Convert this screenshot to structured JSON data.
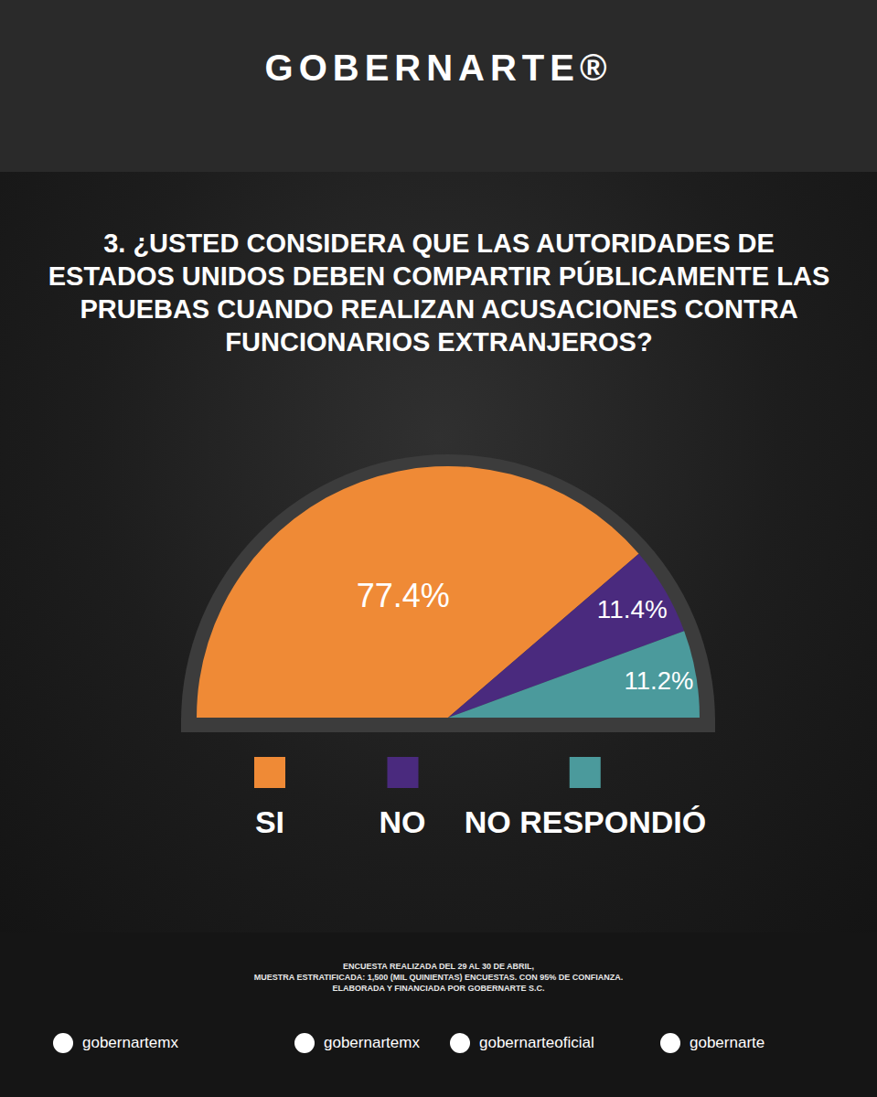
{
  "header": {
    "logo": "GOBERNARTE®"
  },
  "chart_data": {
    "type": "pie",
    "title": "3. ¿USTED CONSIDERA QUE LAS AUTORIDADES DE ESTADOS UNIDOS DEBEN COMPARTIR PÚBLICAMENTE LAS PRUEBAS CUANDO REALIZAN ACUSACIONES CONTRA FUNCIONARIOS EXTRANJEROS?",
    "categories": [
      "SI",
      "NO",
      "NO RESPONDIÓ"
    ],
    "values": [
      77.4,
      11.4,
      11.2
    ],
    "value_labels": [
      "77.4%",
      "11.4%",
      "11.2%"
    ],
    "colors": [
      "#ef8a36",
      "#4a2a7e",
      "#4b9a9c"
    ],
    "data_labels": true
  },
  "footer": {
    "notes": [
      "ENCUESTA REALIZADA DEL 29 AL 30 DE ABRIL,",
      "MUESTRA ESTRATIFICADA: 1,500 (MIL QUINIENTAS) ENCUESTAS. CON 95% DE CONFIANZA.",
      "ELABORADA Y FINANCIADA POR GOBERNARTE S.C."
    ],
    "social": [
      "gobernartemx",
      "gobernartemx",
      "gobernarteoficial",
      "gobernarte"
    ]
  }
}
